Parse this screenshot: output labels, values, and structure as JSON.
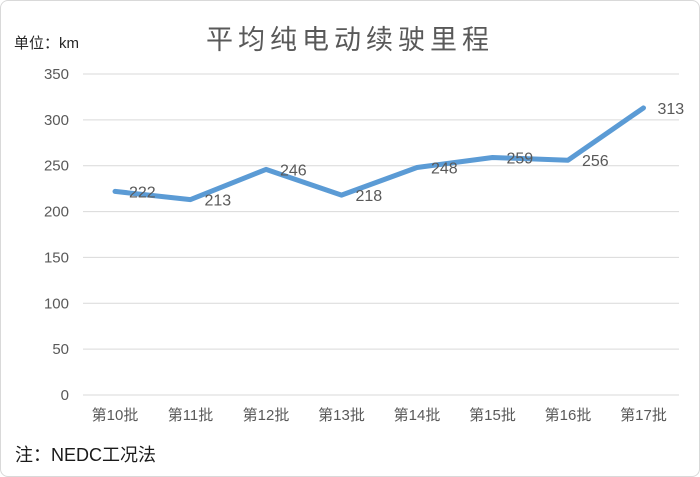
{
  "header": {
    "title": "平均纯电动续驶里程",
    "unit_label": "单位：km"
  },
  "footer": {
    "note": "注：NEDC工况法"
  },
  "chart_data": {
    "type": "line",
    "title": "平均纯电动续驶里程",
    "unit": "km",
    "categories": [
      "第10批",
      "第11批",
      "第12批",
      "第13批",
      "第14批",
      "第15批",
      "第16批",
      "第17批"
    ],
    "values": [
      222,
      213,
      246,
      218,
      248,
      259,
      256,
      313
    ],
    "data_labels": [
      222,
      213,
      246,
      218,
      248,
      259,
      256,
      313
    ],
    "yticks": [
      0,
      50,
      100,
      150,
      200,
      250,
      300,
      350
    ],
    "ylim": [
      0,
      350
    ],
    "xlabel": "",
    "ylabel": "",
    "grid": true,
    "legend": "none",
    "note": "注：NEDC工况法",
    "colors": {
      "line": "#5B9BD5",
      "gridline": "#d9d9d9",
      "tick_label": "#595959",
      "data_label": "#595959",
      "title": "#595959",
      "note_text": "#1a1a1a",
      "border": "#d9d9d9",
      "background": "#ffffff"
    }
  }
}
